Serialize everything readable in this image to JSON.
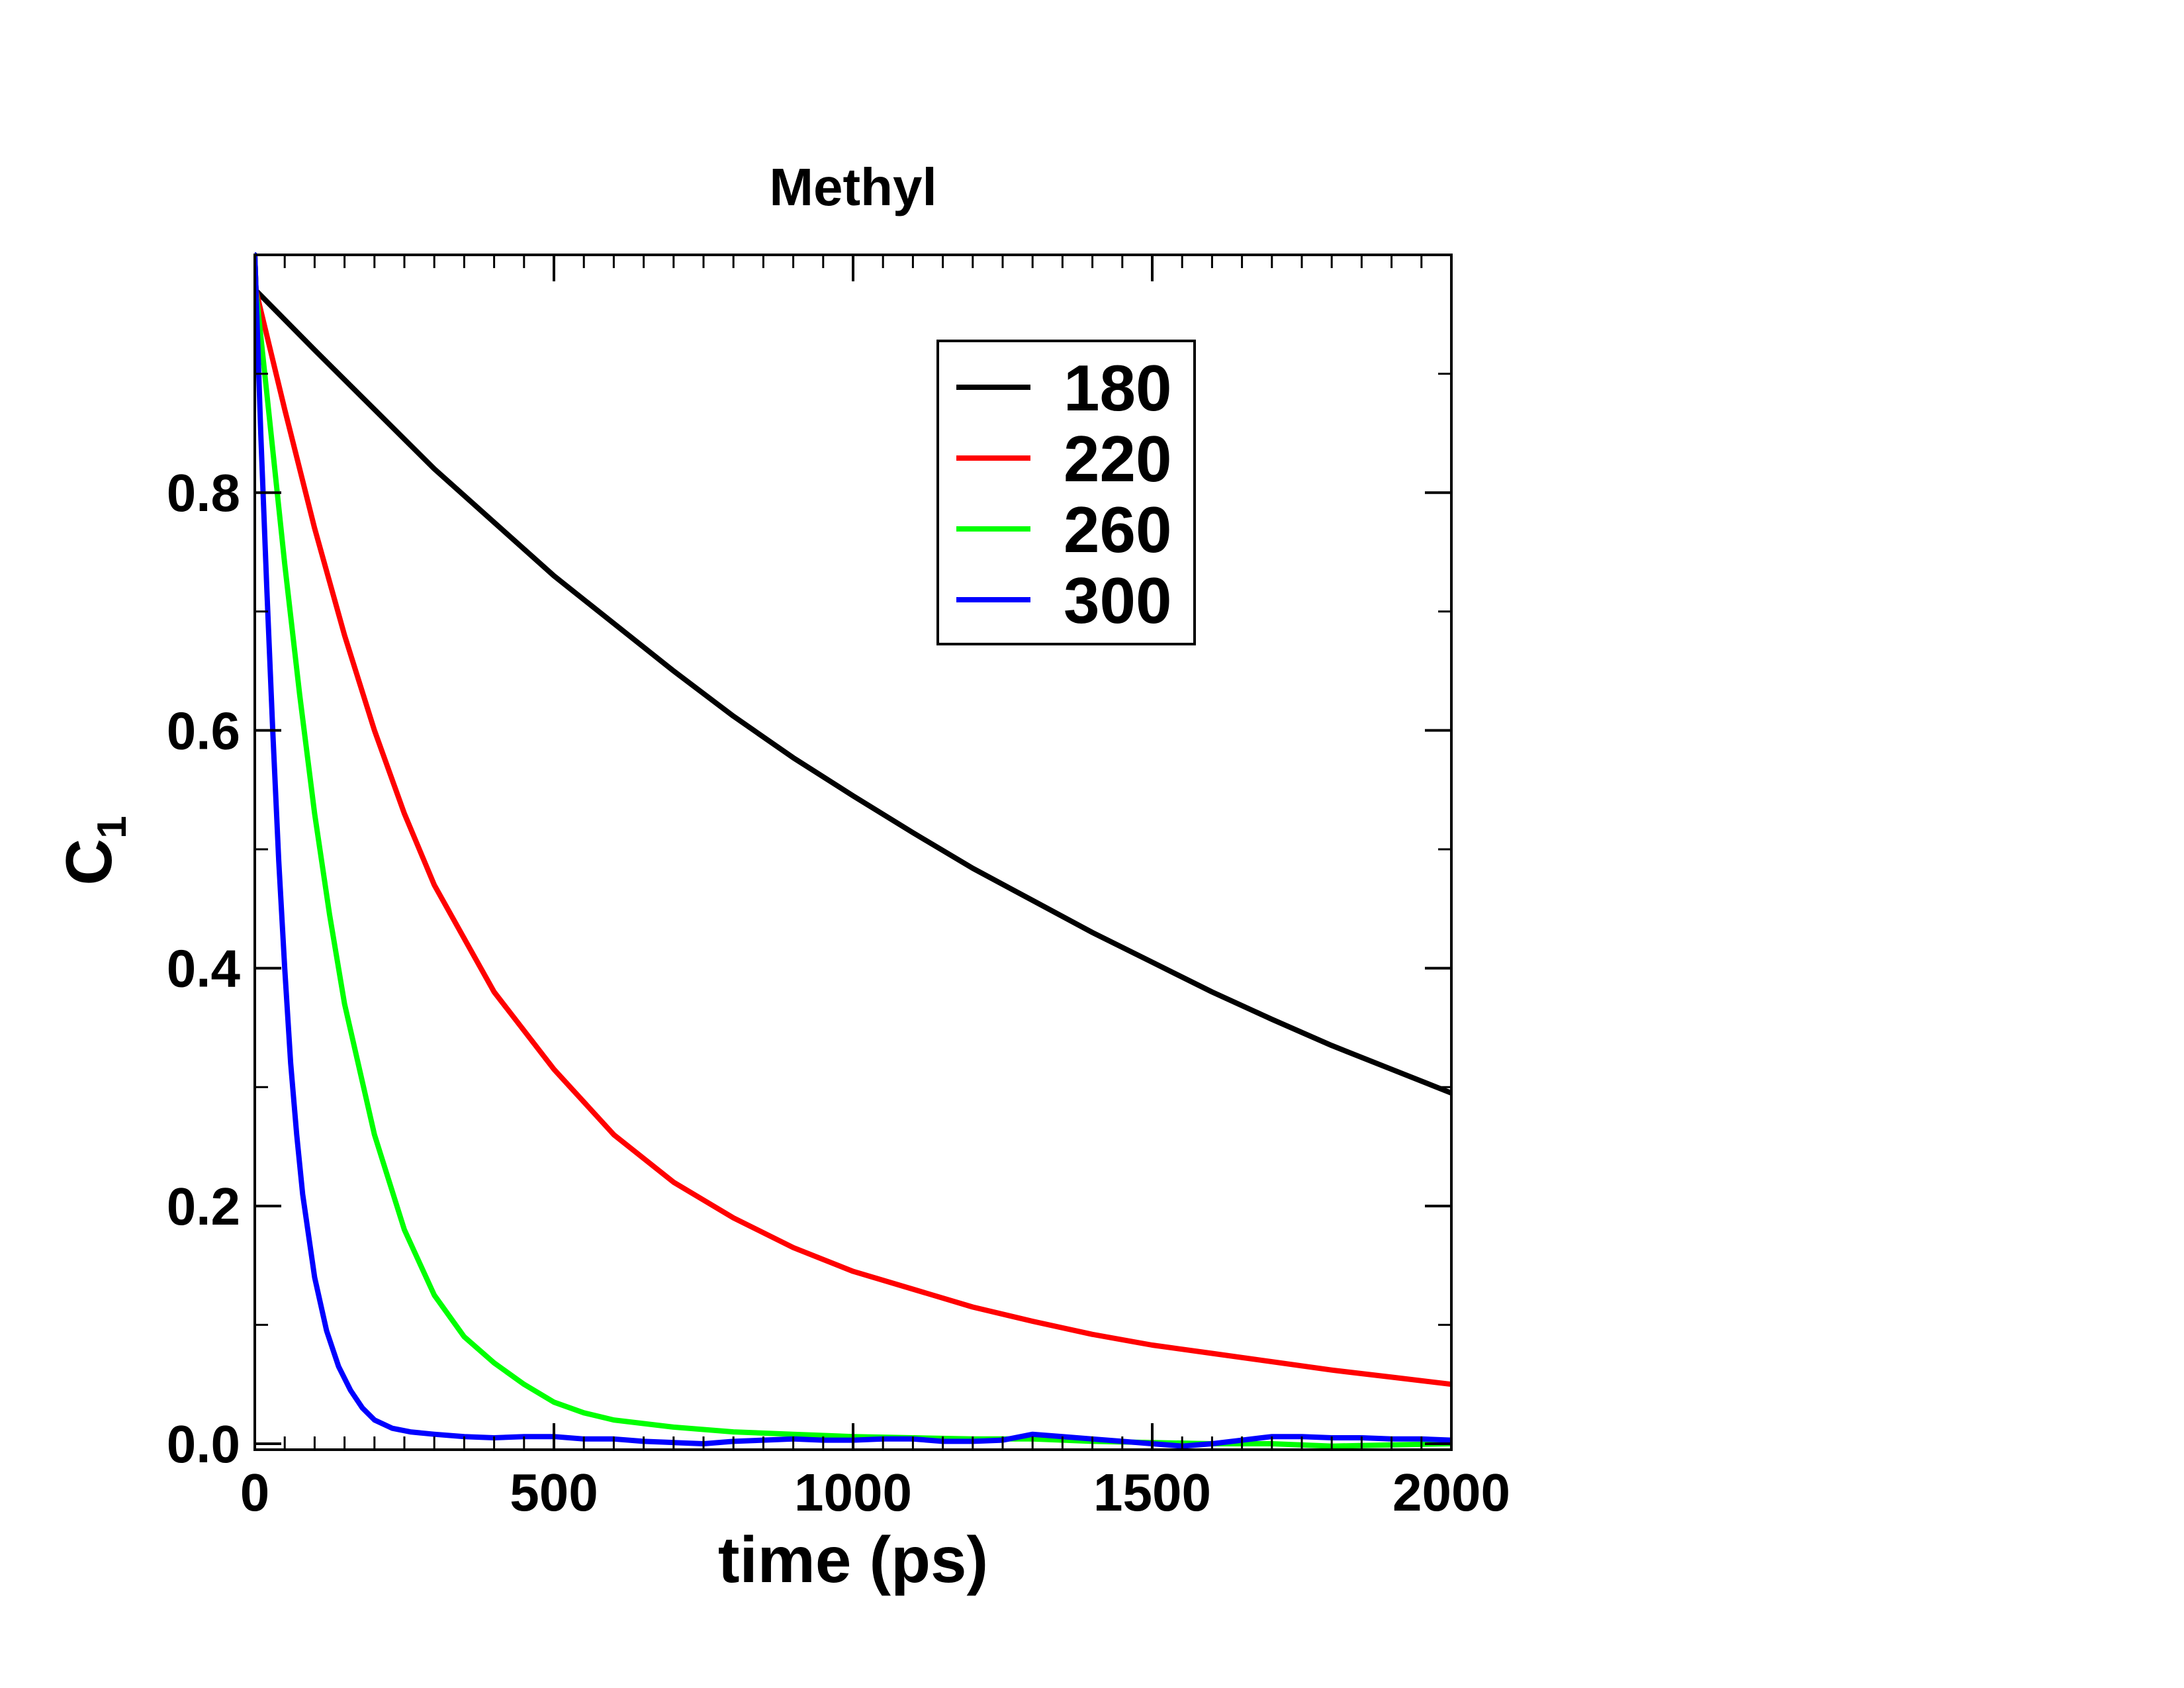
{
  "chart_data": {
    "type": "line",
    "title": "Methyl",
    "xlabel": "time (ps)",
    "ylabel_main": "C",
    "ylabel_sub": "1",
    "xlim": [
      0,
      2000
    ],
    "ylim": [
      -0.005,
      1.0
    ],
    "x_ticks": [
      0,
      500,
      1000,
      1500,
      2000
    ],
    "x_tick_labels": [
      "0",
      "500",
      "1000",
      "1500",
      "2000"
    ],
    "y_ticks": [
      0.0,
      0.2,
      0.4,
      0.6,
      0.8
    ],
    "y_tick_labels": [
      "0.0",
      "0.2",
      "0.4",
      "0.6",
      "0.8"
    ],
    "grid": false,
    "legend_position": "top-right",
    "series": [
      {
        "name": "180",
        "color": "#000000",
        "x": [
          0,
          2,
          100,
          200,
          300,
          400,
          500,
          600,
          700,
          800,
          900,
          1000,
          1100,
          1200,
          1300,
          1400,
          1500,
          1600,
          1700,
          1800,
          1900,
          2000
        ],
        "y": [
          1.0,
          0.97,
          0.92,
          0.87,
          0.82,
          0.775,
          0.73,
          0.69,
          0.65,
          0.612,
          0.577,
          0.545,
          0.514,
          0.484,
          0.457,
          0.43,
          0.405,
          0.38,
          0.357,
          0.335,
          0.315,
          0.295
        ]
      },
      {
        "name": "220",
        "color": "#ff0000",
        "x": [
          0,
          2,
          50,
          100,
          150,
          200,
          250,
          300,
          400,
          500,
          600,
          700,
          800,
          900,
          1000,
          1100,
          1200,
          1300,
          1400,
          1500,
          1600,
          1700,
          1800,
          1900,
          2000
        ],
        "y": [
          1.0,
          0.97,
          0.87,
          0.77,
          0.68,
          0.6,
          0.53,
          0.47,
          0.38,
          0.315,
          0.26,
          0.22,
          0.19,
          0.165,
          0.145,
          0.13,
          0.115,
          0.103,
          0.092,
          0.083,
          0.076,
          0.069,
          0.062,
          0.056,
          0.05
        ]
      },
      {
        "name": "260",
        "color": "#00ff00",
        "x": [
          0,
          2,
          25,
          50,
          75,
          100,
          125,
          150,
          200,
          250,
          300,
          350,
          400,
          450,
          500,
          550,
          600,
          700,
          800,
          900,
          1000,
          1100,
          1200,
          1300,
          1400,
          1500,
          1600,
          1700,
          1800,
          1900,
          2000
        ],
        "y": [
          1.0,
          0.97,
          0.86,
          0.74,
          0.63,
          0.53,
          0.445,
          0.37,
          0.26,
          0.18,
          0.125,
          0.09,
          0.068,
          0.05,
          0.035,
          0.026,
          0.02,
          0.014,
          0.01,
          0.008,
          0.006,
          0.005,
          0.004,
          0.004,
          0.002,
          0.001,
          0.0,
          0.0,
          -0.002,
          -0.001,
          0.0
        ]
      },
      {
        "name": "300",
        "color": "#0000ff",
        "x": [
          0,
          2,
          10,
          20,
          30,
          40,
          50,
          60,
          70,
          80,
          100,
          120,
          140,
          160,
          180,
          200,
          230,
          260,
          300,
          350,
          400,
          450,
          500,
          550,
          600,
          650,
          700,
          750,
          800,
          850,
          900,
          950,
          1000,
          1050,
          1100,
          1150,
          1200,
          1250,
          1300,
          1350,
          1400,
          1450,
          1500,
          1550,
          1600,
          1650,
          1700,
          1750,
          1800,
          1850,
          1900,
          1950,
          2000
        ],
        "y": [
          1.0,
          0.97,
          0.85,
          0.72,
          0.6,
          0.49,
          0.4,
          0.32,
          0.26,
          0.21,
          0.14,
          0.095,
          0.065,
          0.045,
          0.03,
          0.02,
          0.013,
          0.01,
          0.008,
          0.006,
          0.005,
          0.006,
          0.006,
          0.004,
          0.004,
          0.002,
          0.001,
          0.0,
          0.002,
          0.003,
          0.004,
          0.003,
          0.003,
          0.004,
          0.004,
          0.002,
          0.002,
          0.003,
          0.008,
          0.006,
          0.004,
          0.002,
          0.0,
          -0.002,
          0.0,
          0.003,
          0.006,
          0.006,
          0.005,
          0.005,
          0.004,
          0.004,
          0.003
        ]
      }
    ]
  }
}
